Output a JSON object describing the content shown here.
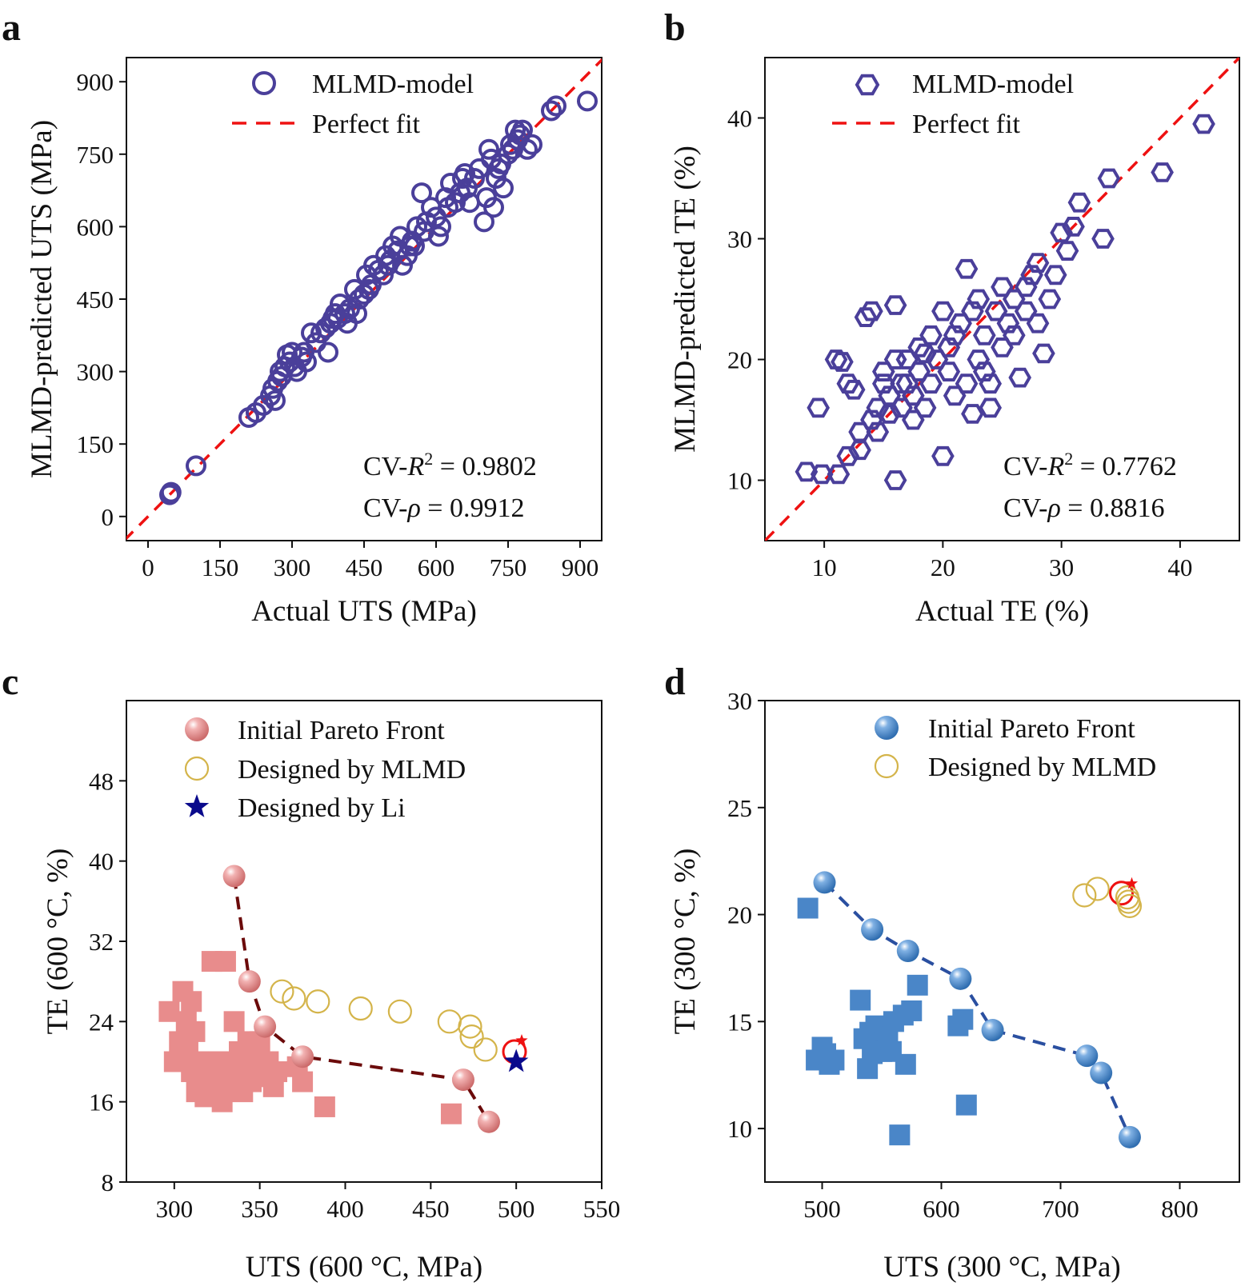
{
  "colors": {
    "purple": "#4a3f9a",
    "fit_red": "#ee1111",
    "pink": "#e88c8c",
    "dark_red_line": "#6b0a0a",
    "gold": "#d4b44a",
    "navy_star": "#0a0a8c",
    "blue": "#4a86c8",
    "dark_blue_line": "#2a4fa0"
  },
  "chart_data": [
    {
      "panel": "a",
      "type": "scatter",
      "xlabel": "Actual UTS (MPa)",
      "ylabel": "MLMD-predicted UTS (MPa)",
      "xlim": [
        -45,
        945
      ],
      "ylim": [
        -50,
        950
      ],
      "xticks": [
        "0",
        "150",
        "300",
        "450",
        "600",
        "750",
        "900"
      ],
      "yticks": [
        "0",
        "150",
        "300",
        "450",
        "600",
        "750",
        "900"
      ],
      "legend": {
        "placement": "top-center",
        "entries": [
          "MLMD-model",
          "Perfect fit"
        ]
      },
      "stats": {
        "r2_prefix": "CV-",
        "r2_symbol": "R",
        "r2_sup": "2",
        "r2_value": " = 0.9802",
        "rho_prefix": "CV-",
        "rho_symbol": "ρ",
        "rho_value": " = 0.9912"
      },
      "series": [
        {
          "name": "MLMD-model",
          "marker": "circle-open",
          "x": [
            45,
            48,
            100,
            210,
            225,
            240,
            255,
            260,
            265,
            270,
            275,
            278,
            285,
            290,
            295,
            300,
            305,
            310,
            320,
            325,
            330,
            340,
            350,
            360,
            370,
            375,
            380,
            385,
            390,
            395,
            400,
            410,
            415,
            420,
            430,
            435,
            440,
            450,
            455,
            460,
            465,
            470,
            480,
            490,
            495,
            500,
            505,
            510,
            520,
            525,
            530,
            540,
            545,
            550,
            555,
            560,
            570,
            575,
            580,
            590,
            600,
            605,
            610,
            620,
            625,
            630,
            640,
            650,
            655,
            660,
            665,
            670,
            680,
            690,
            700,
            705,
            710,
            715,
            720,
            725,
            730,
            735,
            740,
            750,
            755,
            760,
            765,
            770,
            775,
            780,
            790,
            800,
            840,
            850,
            915
          ],
          "y": [
            45,
            50,
            105,
            205,
            215,
            230,
            250,
            265,
            240,
            280,
            300,
            290,
            310,
            335,
            320,
            340,
            310,
            300,
            330,
            340,
            320,
            380,
            360,
            380,
            390,
            340,
            400,
            410,
            420,
            410,
            440,
            420,
            400,
            430,
            470,
            420,
            450,
            460,
            500,
            470,
            480,
            520,
            510,
            500,
            540,
            520,
            530,
            560,
            550,
            580,
            520,
            540,
            560,
            570,
            560,
            600,
            670,
            590,
            610,
            640,
            620,
            580,
            600,
            660,
            640,
            690,
            650,
            670,
            700,
            710,
            680,
            650,
            700,
            720,
            610,
            660,
            760,
            740,
            640,
            700,
            720,
            730,
            680,
            750,
            770,
            760,
            800,
            780,
            790,
            800,
            760,
            770,
            840,
            850,
            860
          ]
        },
        {
          "name": "Perfect fit",
          "type": "line",
          "style": "dashed",
          "x": [
            -50,
            950
          ],
          "y": [
            -50,
            950
          ]
        }
      ]
    },
    {
      "panel": "b",
      "type": "scatter",
      "xlabel": "Actual TE (%)",
      "ylabel": "MLMD-predicted TE (%)",
      "xlim": [
        5,
        45
      ],
      "ylim": [
        5,
        45
      ],
      "xticks": [
        "10",
        "20",
        "30",
        "40"
      ],
      "yticks": [
        "10",
        "20",
        "30",
        "40"
      ],
      "legend": {
        "placement": "top-center",
        "entries": [
          "MLMD-model",
          "Perfect fit"
        ]
      },
      "stats": {
        "r2_prefix": "CV-",
        "r2_symbol": "R",
        "r2_sup": "2",
        "r2_value": " = 0.7762",
        "rho_prefix": "CV-",
        "rho_symbol": "ρ",
        "rho_value": " = 0.8816"
      },
      "series": [
        {
          "name": "MLMD-model",
          "marker": "hexagon-open",
          "x": [
            8.5,
            9.5,
            9.8,
            11,
            11.2,
            11.5,
            12,
            12,
            12.5,
            13,
            13,
            13.5,
            14,
            14,
            14.5,
            14.5,
            15,
            15,
            15.5,
            15.5,
            16,
            16,
            16,
            16.5,
            16.5,
            17,
            17,
            17.5,
            17.5,
            18,
            18,
            18.5,
            18.5,
            19,
            19,
            19.5,
            20,
            20,
            20.5,
            20.5,
            21,
            21,
            21.5,
            22,
            22,
            22.5,
            22.5,
            23,
            23,
            23.5,
            23.5,
            24,
            24,
            24.5,
            25,
            25,
            25.5,
            26,
            26,
            26.5,
            27,
            27,
            27.5,
            28,
            28,
            28.5,
            29,
            29.5,
            30,
            30.5,
            31,
            31.5,
            33.5,
            34,
            38.5,
            42
          ],
          "y": [
            10.7,
            16,
            10.5,
            20,
            10.5,
            19.8,
            12,
            18,
            17.5,
            14,
            12.5,
            23.5,
            15,
            24,
            16,
            14,
            18,
            19,
            15.5,
            17,
            20,
            24.5,
            10,
            18,
            16,
            18,
            20,
            17,
            15,
            19,
            21,
            16,
            20.5,
            18,
            22,
            20,
            12,
            24,
            19,
            21,
            17,
            22,
            23,
            18,
            27.5,
            24,
            15.5,
            20,
            25,
            19,
            22,
            16,
            18,
            24,
            26,
            21,
            23,
            22,
            25,
            18.5,
            24,
            26,
            27,
            23,
            28,
            20.5,
            25,
            27,
            30.5,
            29,
            31,
            33,
            30,
            35,
            35.5,
            39.5
          ]
        },
        {
          "name": "Perfect fit",
          "type": "line",
          "style": "dashed",
          "x": [
            5,
            45
          ],
          "y": [
            5,
            45
          ]
        }
      ]
    },
    {
      "panel": "c",
      "type": "scatter",
      "xlabel": "UTS (600 °C, MPa)",
      "ylabel": "TE (600 °C, %)",
      "xlim": [
        272,
        550
      ],
      "ylim": [
        8,
        56
      ],
      "xticks": [
        "300",
        "350",
        "400",
        "450",
        "500",
        "550"
      ],
      "yticks": [
        "8",
        "16",
        "24",
        "32",
        "40",
        "48"
      ],
      "legend": {
        "placement": "top-left",
        "entries": [
          "Initial Pareto  Front",
          "Designed by MLMD",
          "Designed by Li"
        ]
      },
      "series": [
        {
          "name": "Initial Pareto  Front",
          "marker": "sphere",
          "x": [
            335,
            344,
            353,
            375,
            469,
            484
          ],
          "y": [
            38.5,
            28,
            23.5,
            20.5,
            18.2,
            14
          ]
        },
        {
          "name": "Pareto line",
          "type": "line",
          "style": "dashed",
          "x": [
            335,
            344,
            353,
            375,
            469,
            484
          ],
          "y": [
            38.5,
            28,
            23.5,
            20.5,
            18.2,
            14
          ]
        },
        {
          "name": "Dominated alloys",
          "marker": "square",
          "x": [
            297,
            300,
            303,
            305,
            307,
            308,
            310,
            310,
            312,
            313,
            315,
            318,
            320,
            322,
            325,
            326,
            328,
            330,
            332,
            335,
            337,
            338,
            340,
            342,
            343,
            345,
            346,
            348,
            350,
            352,
            355,
            358,
            360,
            372,
            375,
            388,
            462
          ],
          "y": [
            25,
            20,
            22,
            27,
            24,
            21,
            26,
            19,
            23,
            17,
            20,
            16.5,
            18,
            30,
            19,
            20,
            16,
            30,
            18,
            24,
            19,
            21,
            17,
            20,
            22,
            18,
            21,
            19,
            22,
            18.5,
            20,
            17.5,
            19,
            19.5,
            18,
            15.5,
            14.8
          ]
        },
        {
          "name": "Designed by MLMD",
          "marker": "circle-open",
          "x": [
            363,
            370,
            384,
            409,
            432,
            461,
            473,
            474,
            482,
            499
          ],
          "y": [
            27,
            26.3,
            26,
            25.3,
            25,
            24,
            23.5,
            22.5,
            21.2,
            21
          ]
        },
        {
          "name": "Designed by Li",
          "marker": "star",
          "x": [
            500
          ],
          "y": [
            20
          ]
        }
      ]
    },
    {
      "panel": "d",
      "type": "scatter",
      "xlabel": "UTS (300 °C, MPa)",
      "ylabel": "TE (300 °C, %)",
      "xlim": [
        452,
        850
      ],
      "ylim": [
        7.5,
        30
      ],
      "xticks": [
        "500",
        "600",
        "700",
        "800"
      ],
      "yticks": [
        "10",
        "15",
        "20",
        "25",
        "30"
      ],
      "legend": {
        "placement": "top-right",
        "entries": [
          "Initial Pareto Front",
          "Designed by MLMD"
        ]
      },
      "series": [
        {
          "name": "Initial Pareto Front",
          "marker": "sphere",
          "x": [
            502,
            542,
            572,
            616,
            643,
            722,
            734,
            758
          ],
          "y": [
            21.5,
            19.3,
            18.3,
            17,
            14.6,
            13.4,
            12.6,
            9.6
          ]
        },
        {
          "name": "Pareto line",
          "type": "line",
          "style": "dashed",
          "x": [
            502,
            542,
            572,
            616,
            643,
            722,
            734,
            758
          ],
          "y": [
            21.5,
            19.3,
            18.3,
            17,
            14.6,
            13.4,
            12.6,
            9.6
          ]
        },
        {
          "name": "Dominated alloys",
          "marker": "square",
          "x": [
            488,
            495,
            500,
            503,
            506,
            510,
            532,
            535,
            538,
            540,
            542,
            545,
            548,
            550,
            553,
            555,
            558,
            560,
            565,
            568,
            570,
            575,
            580,
            614,
            618,
            621
          ],
          "y": [
            20.3,
            13.2,
            13.8,
            13.5,
            13,
            13.2,
            16,
            14.2,
            12.8,
            14.5,
            13.5,
            14.8,
            14,
            13.6,
            14.6,
            14.3,
            13.6,
            15,
            9.7,
            15.3,
            13,
            15.5,
            16.7,
            14.8,
            15.1,
            11.1
          ]
        },
        {
          "name": "Designed by MLMD",
          "marker": "circle-open",
          "x": [
            720,
            731,
            751,
            756,
            757,
            758
          ],
          "y": [
            20.9,
            21.2,
            21,
            20.8,
            20.6,
            20.4
          ]
        }
      ]
    }
  ]
}
